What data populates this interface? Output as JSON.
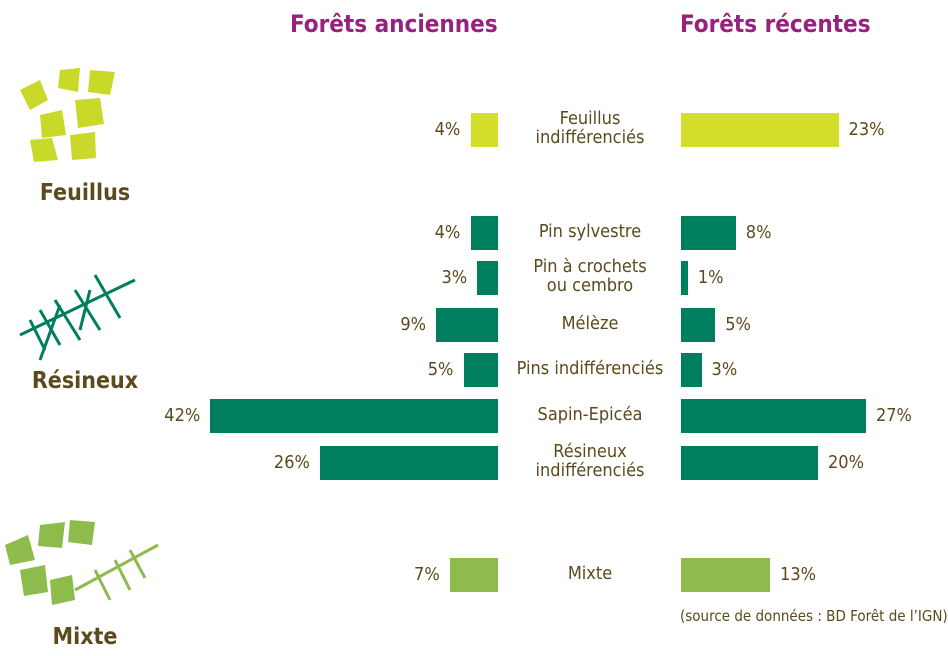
{
  "chart_data": {
    "type": "butterfly",
    "series": [
      {
        "name": "Forêts anciennes"
      },
      {
        "name": "Forêts récentes"
      }
    ],
    "groups": [
      {
        "name": "Feuillus",
        "color": "#d4df2b",
        "categories": [
          "Feuillus\nindifférenciés"
        ],
        "values": [
          [
            4
          ],
          [
            23
          ]
        ],
        "value_labels": [
          [
            "4%"
          ],
          [
            "23%"
          ]
        ]
      },
      {
        "name": "Résineux",
        "color": "#007f5f",
        "categories": [
          "Pin sylvestre",
          "Pin à crochets\nou cembro",
          "Mélèze",
          "Pins indifférenciés",
          "Sapin-Epicéa",
          "Résineux\nindifférenciés"
        ],
        "values": [
          [
            4,
            3,
            9,
            5,
            42,
            26
          ],
          [
            8,
            1,
            5,
            3,
            27,
            20
          ]
        ],
        "value_labels": [
          [
            "4%",
            "3%",
            "9%",
            "5%",
            "42%",
            "26%"
          ],
          [
            "8%",
            "1%",
            "5%",
            "3%",
            "27%",
            "20%"
          ]
        ]
      },
      {
        "name": "Mixte",
        "color": "#8dbb4c",
        "categories": [
          "Mixte"
        ],
        "values": [
          [
            7
          ],
          [
            13
          ]
        ],
        "value_labels": [
          [
            "7%"
          ],
          [
            "13%"
          ]
        ]
      }
    ],
    "source": "(source de données : BD Forêt de l’IGN)"
  }
}
